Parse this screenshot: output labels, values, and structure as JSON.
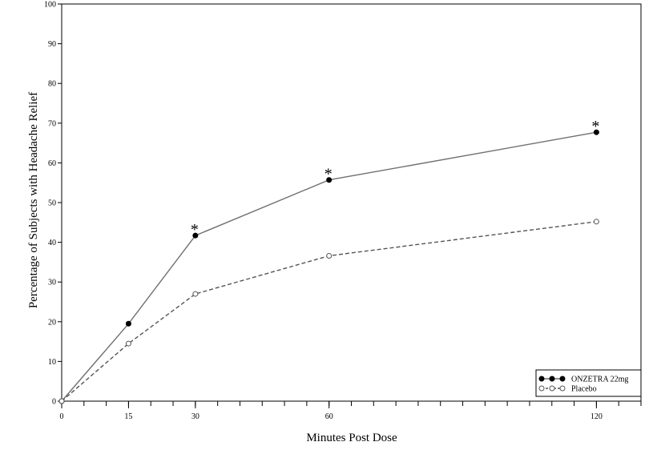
{
  "chart_data": {
    "type": "line",
    "xlabel": "Minutes Post Dose",
    "ylabel": "Percentage of Subjects with Headache Relief",
    "xlim": [
      0,
      130
    ],
    "ylim": [
      0,
      100
    ],
    "x_ticks": [
      0,
      15,
      30,
      60,
      120
    ],
    "x_minor_ticks": [
      0,
      5,
      10,
      15,
      20,
      25,
      30,
      35,
      40,
      45,
      50,
      55,
      60,
      65,
      70,
      75,
      80,
      85,
      90,
      95,
      100,
      105,
      110,
      115,
      120,
      125,
      130
    ],
    "y_ticks": [
      0,
      10,
      20,
      30,
      40,
      50,
      60,
      70,
      80,
      90,
      100
    ],
    "grid": false,
    "legend_position": "bottom-right",
    "significance_marker": "*",
    "significant_x": [
      30,
      60,
      120
    ],
    "series": [
      {
        "name": "ONZETRA 22mg",
        "marker": "filled-circle",
        "line_style": "solid",
        "color": "#707070",
        "x": [
          0,
          15,
          30,
          60,
          120
        ],
        "y": [
          0,
          19.5,
          41.7,
          55.7,
          67.7
        ]
      },
      {
        "name": "Placebo",
        "marker": "open-circle",
        "line_style": "dashed",
        "color": "#555555",
        "x": [
          0,
          15,
          30,
          60,
          120
        ],
        "y": [
          0,
          14.5,
          27,
          36.6,
          45.2
        ]
      }
    ]
  }
}
